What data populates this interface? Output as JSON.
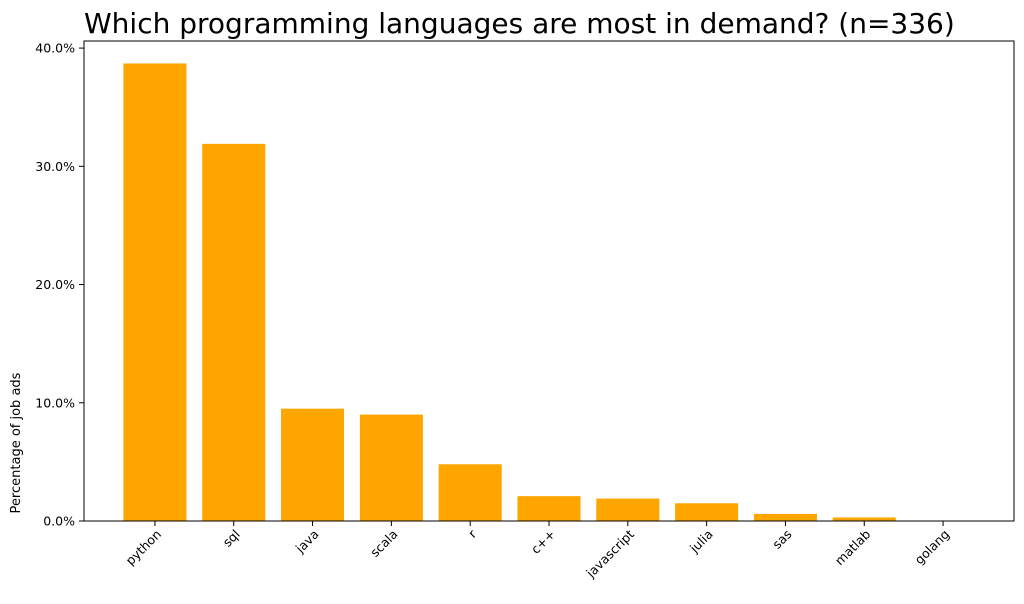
{
  "chart_data": {
    "type": "bar",
    "title": "Which programming languages are most in demand? (n=336)",
    "xlabel": "",
    "ylabel": "Percentage of job ads",
    "categories": [
      "python",
      "sql",
      "java",
      "scala",
      "r",
      "c++",
      "javascript",
      "julia",
      "sas",
      "matlab",
      "golang"
    ],
    "values": [
      38.7,
      31.9,
      9.5,
      9.0,
      4.8,
      2.1,
      1.9,
      1.5,
      0.6,
      0.3,
      0.0
    ],
    "ylim": [
      0,
      40.6
    ],
    "yticks": [
      0,
      10,
      20,
      30,
      40
    ],
    "ytick_labels": [
      "0.0%",
      "10.0%",
      "20.0%",
      "30.0%",
      "40.0%"
    ],
    "grid": false,
    "legend": "none",
    "bar_color": "#FFA500"
  }
}
